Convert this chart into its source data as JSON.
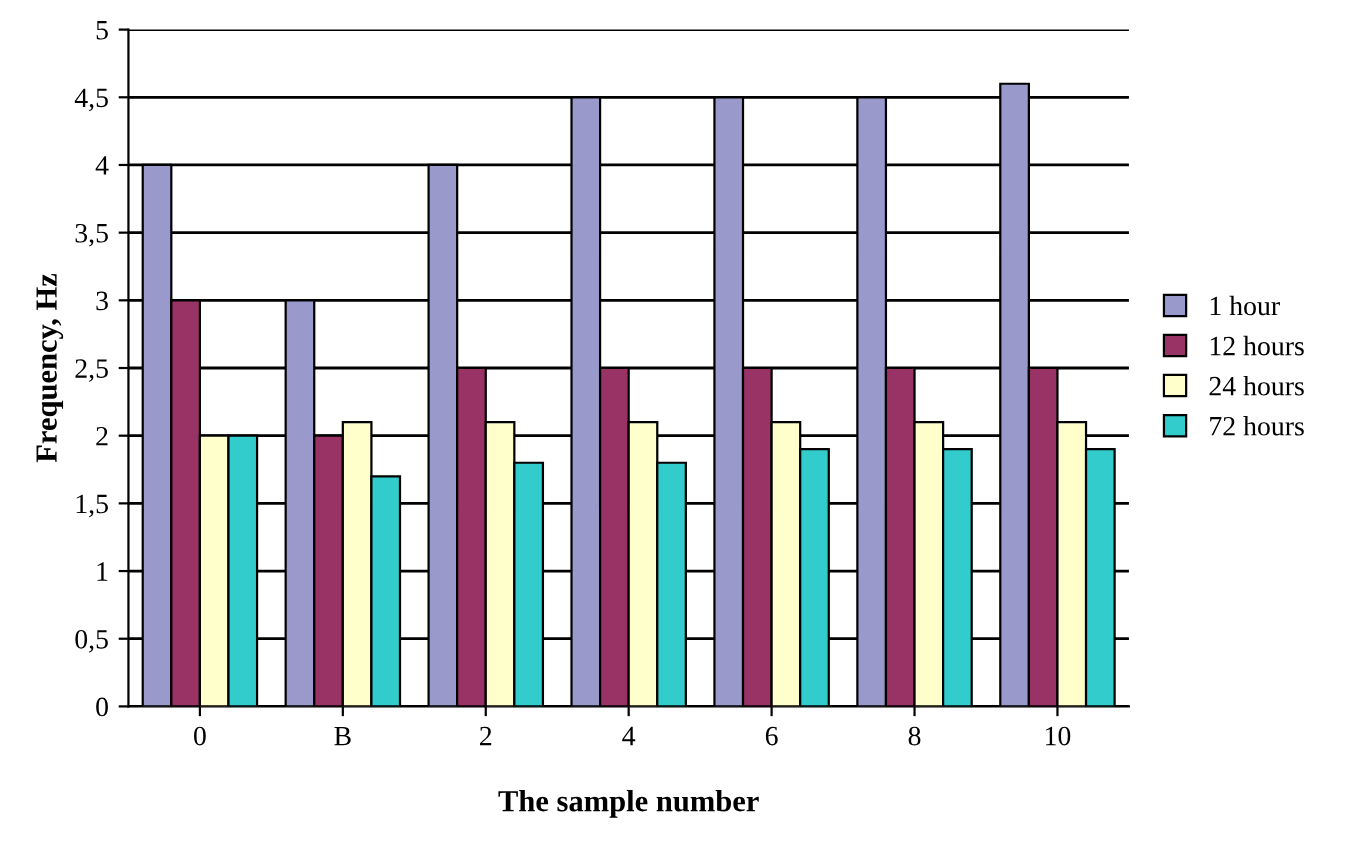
{
  "chart_data": {
    "type": "bar",
    "xlabel": "The sample number",
    "ylabel": "Frequency, Hz",
    "categories": [
      "0",
      "B",
      "2",
      "4",
      "6",
      "8",
      "10"
    ],
    "series": [
      {
        "name": "1 hour",
        "color": "#9999cc",
        "values": [
          4,
          3,
          4,
          4.5,
          4.5,
          4.5,
          4.6
        ]
      },
      {
        "name": "12 hours",
        "color": "#993366",
        "values": [
          3,
          2,
          2.5,
          2.5,
          2.5,
          2.5,
          2.5
        ]
      },
      {
        "name": "24 hours",
        "color": "#ffffcc",
        "values": [
          2,
          2.1,
          2.1,
          2.1,
          2.1,
          2.1,
          2.1
        ]
      },
      {
        "name": "72 hours",
        "color": "#33cccc",
        "values": [
          2,
          1.7,
          1.8,
          1.8,
          1.9,
          1.9,
          1.9
        ]
      }
    ],
    "ylim": [
      0,
      5
    ],
    "yticks": [
      0,
      {
        "value": 0.5,
        "label": "0,5"
      },
      1,
      {
        "value": 1.5,
        "label": "1,5"
      },
      2,
      {
        "value": 2.5,
        "label": "2,5"
      },
      3,
      {
        "value": 3.5,
        "label": "3,5"
      },
      4,
      {
        "value": 4.5,
        "label": "4,5"
      },
      5
    ],
    "grid": "y",
    "legend": "right"
  }
}
